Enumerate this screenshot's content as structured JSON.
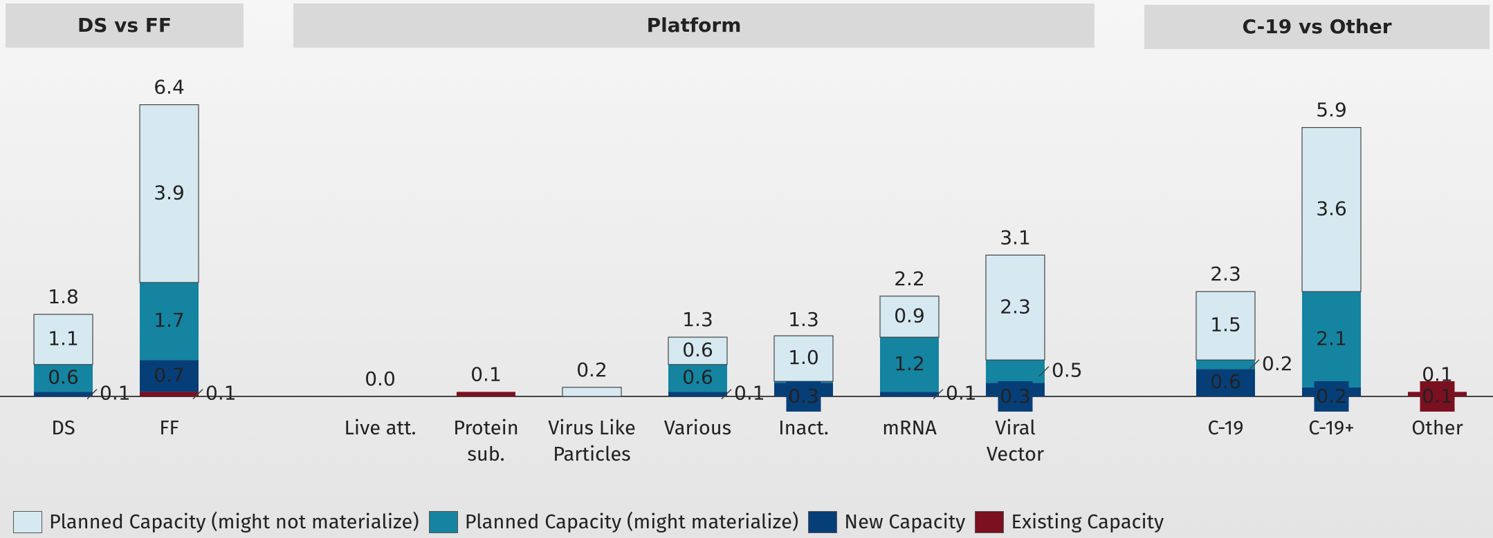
{
  "chart_data": {
    "type": "bar",
    "stacked": true,
    "panels": [
      {
        "title": "DS vs FF",
        "categories": [
          "DS",
          "FF"
        ],
        "totals": [
          1.8,
          6.4
        ],
        "total_labels": [
          "1.8",
          "6.4"
        ]
      },
      {
        "title": "Platform",
        "categories": [
          "Live att.",
          "Protein\nsub.",
          "Virus Like\nParticles",
          "Various",
          "Inact.",
          "mRNA",
          "Viral\nVector"
        ],
        "totals": [
          0,
          0.1,
          0.2,
          1.3,
          1.3,
          2.2,
          3.1
        ],
        "total_labels": [
          "0.0",
          "0.1",
          "0.2",
          "1.3",
          "1.3",
          "2.2",
          "3.1"
        ]
      },
      {
        "title": "C-19 vs Other",
        "categories": [
          "C-19",
          "C-19+",
          "Other"
        ],
        "totals": [
          2.3,
          5.9,
          0.1
        ],
        "total_labels": [
          "2.3",
          "5.9",
          "0.1"
        ]
      }
    ],
    "series": [
      {
        "name": "Planned Capacity (might not materialize)",
        "color": "#d6e9f1",
        "values": [
          1.1,
          3.9,
          0,
          0,
          0.2,
          0.6,
          1.0,
          0.9,
          2.3,
          1.5,
          3.6,
          0
        ],
        "value_labels": [
          "1.1",
          "3.9",
          null,
          null,
          null,
          "0.6",
          "1.0",
          "0.9",
          "2.3",
          "1.5",
          "3.6",
          null
        ]
      },
      {
        "name": "Planned Capacity (might materialize)",
        "color": "#1484a1",
        "values": [
          0.6,
          1.7,
          0,
          0,
          0,
          0.6,
          0.03,
          1.2,
          0.5,
          0.2,
          2.1,
          0
        ],
        "value_labels": [
          "0.6",
          "1.7",
          null,
          null,
          null,
          "0.6",
          null,
          "1.2",
          "0.5",
          "0.2",
          "2.1",
          null
        ]
      },
      {
        "name": "New Capacity",
        "color": "#063f78",
        "values": [
          0.1,
          0.7,
          0,
          0,
          0,
          0.1,
          0.3,
          0.1,
          0.3,
          0.6,
          0.2,
          0
        ],
        "value_labels": [
          "0.1",
          "0.7",
          null,
          null,
          null,
          "0.1",
          "0.3",
          "0.1",
          "0.3",
          "0.6",
          "0.2",
          null
        ]
      },
      {
        "name": "Existing Capacity",
        "color": "#7b1020",
        "values": [
          0,
          0.1,
          0,
          0.1,
          0,
          0,
          0,
          0,
          0,
          0,
          0,
          0.1
        ],
        "value_labels": [
          null,
          "0.1",
          null,
          null,
          null,
          null,
          null,
          null,
          null,
          null,
          null,
          "0.1"
        ]
      }
    ]
  }
}
